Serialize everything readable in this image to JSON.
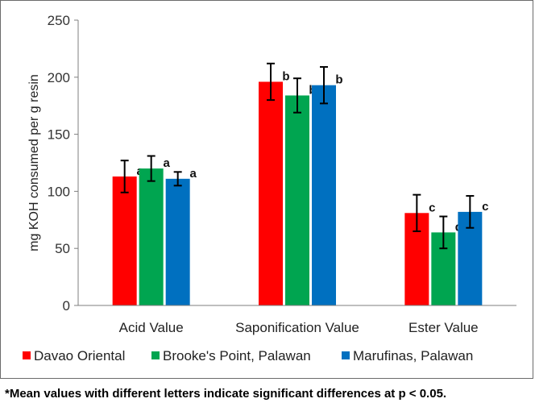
{
  "chart_data": {
    "type": "bar",
    "ylabel": "mg KOH consumed per g resin",
    "xlabel": "",
    "ylim": [
      0,
      250
    ],
    "yticks": [
      0,
      50,
      100,
      150,
      200,
      250
    ],
    "grid": false,
    "legend_position": "bottom",
    "categories": [
      "Acid Value",
      "Saponification Value",
      "Ester Value"
    ],
    "series": [
      {
        "name": "Davao Oriental",
        "color": "#ff0000",
        "values": [
          113,
          196,
          81
        ],
        "errors": [
          14,
          16,
          16
        ],
        "labels": [
          "a",
          "b",
          "c"
        ]
      },
      {
        "name": "Brooke's Point, Palawan",
        "color": "#00a550",
        "values": [
          120,
          184,
          64
        ],
        "errors": [
          11,
          15,
          14
        ],
        "labels": [
          "a",
          "b",
          "d"
        ]
      },
      {
        "name": "Marufinas, Palawan",
        "color": "#0070c0",
        "values": [
          111,
          193,
          82
        ],
        "errors": [
          6,
          16,
          14
        ],
        "labels": [
          "a",
          "b",
          "c"
        ]
      }
    ]
  },
  "footnote": "*Mean values with different letters indicate significant differences at p < 0.05."
}
